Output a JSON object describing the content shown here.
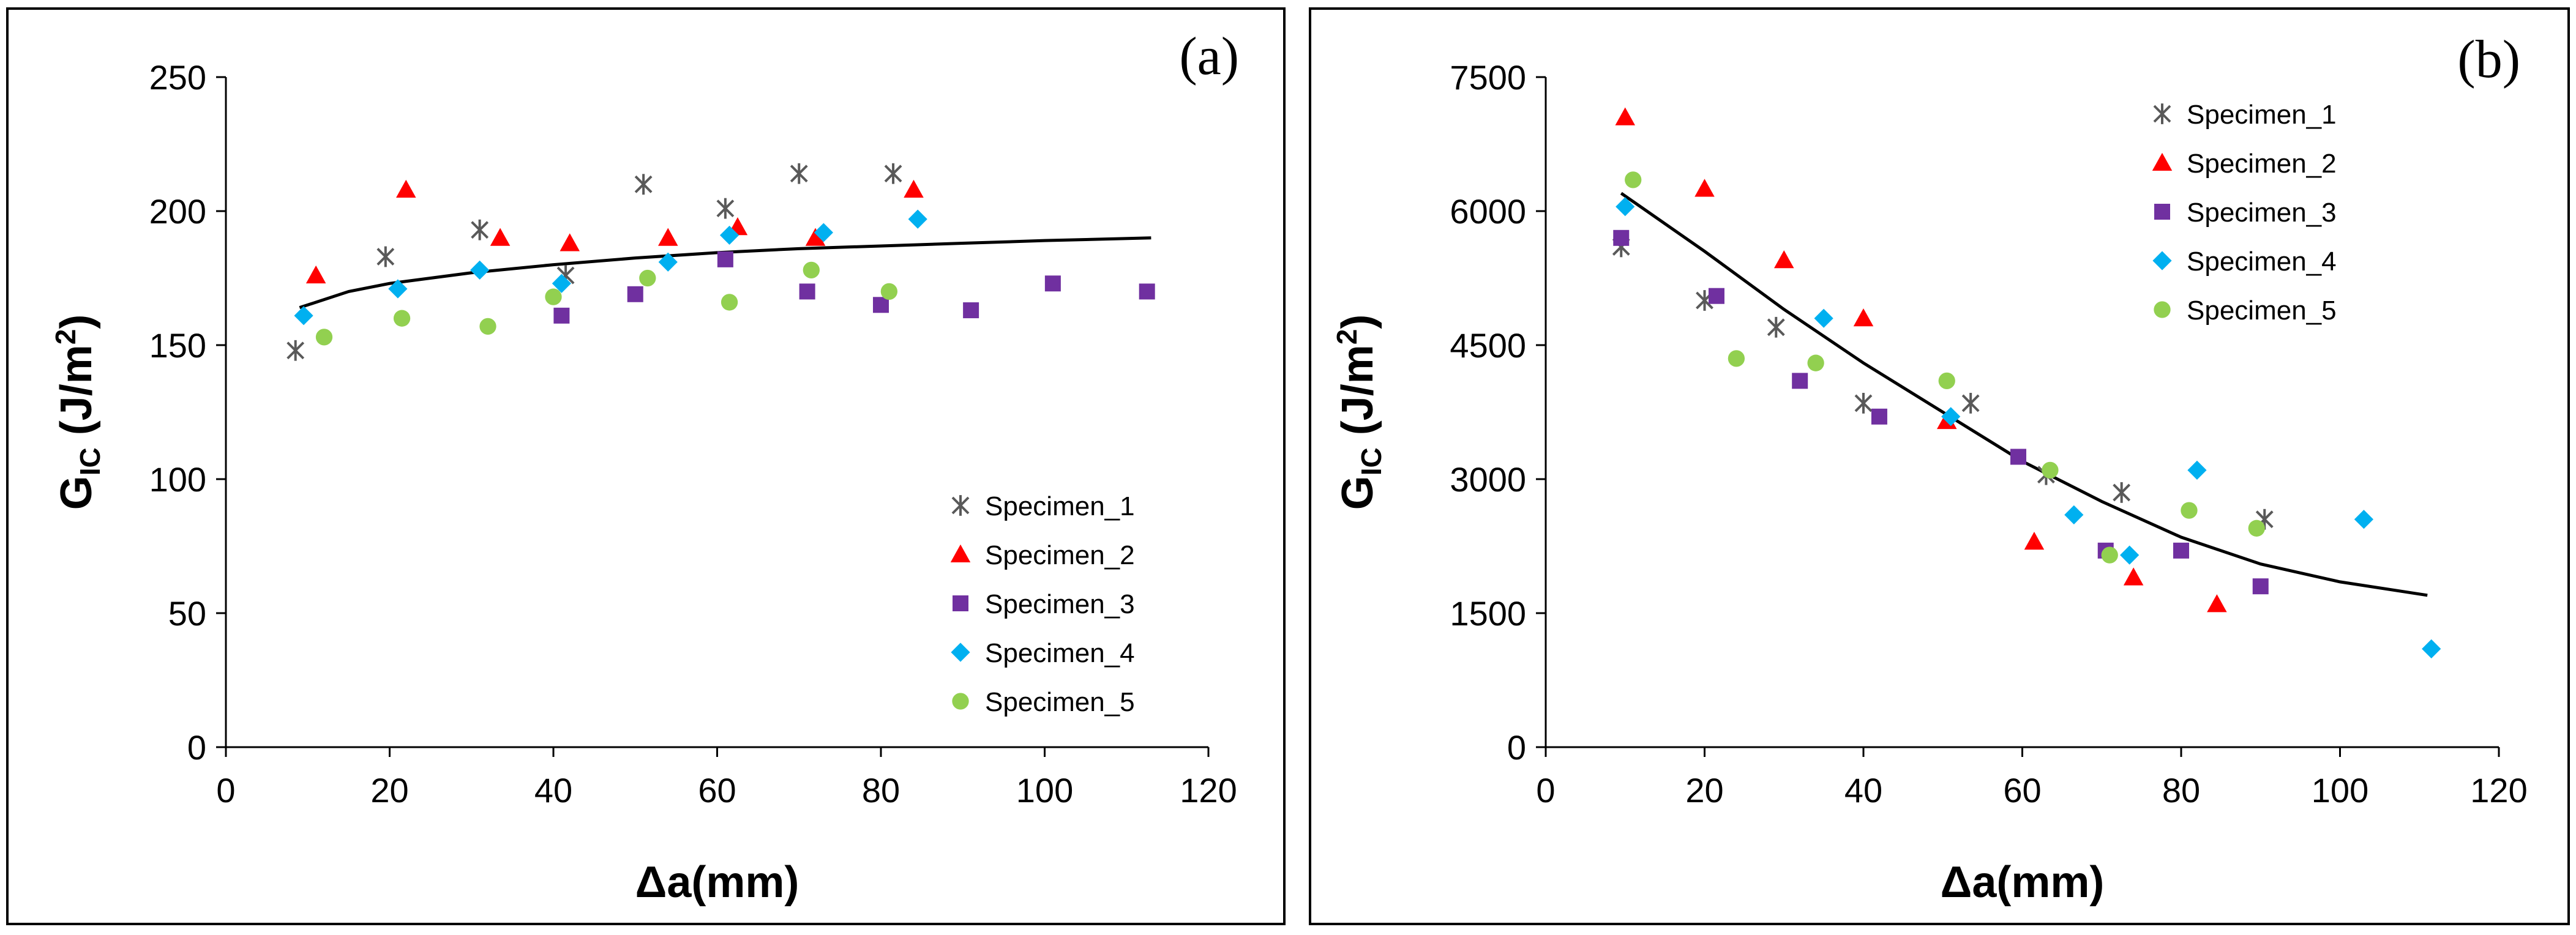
{
  "chart_data": [
    {
      "type": "scatter",
      "panel_label": "(a)",
      "xlabel": "Δa(mm)",
      "ylabel_main": "G",
      "ylabel_sub": "IC",
      "ylabel_unit": " (J/m",
      "ylabel_sup": "2",
      "ylabel_close": ")",
      "xlim": [
        0,
        120
      ],
      "ylim": [
        0,
        250
      ],
      "xticks": [
        0,
        20,
        40,
        60,
        80,
        100,
        120
      ],
      "yticks": [
        0,
        50,
        100,
        150,
        200,
        250
      ],
      "legend_position": "bottom-right",
      "series": [
        {
          "name": "Specimen_1",
          "marker": "star",
          "color": "#595959",
          "x": [
            8.5,
            19.5,
            31,
            41.5,
            51,
            61,
            70,
            81.5
          ],
          "y": [
            148,
            183,
            193,
            176,
            210,
            201,
            214,
            214
          ]
        },
        {
          "name": "Specimen_2",
          "marker": "triangle",
          "color": "#ff0000",
          "x": [
            11,
            22,
            33.5,
            42,
            54,
            62.5,
            72,
            84
          ],
          "y": [
            176,
            208,
            190,
            188,
            190,
            194,
            190,
            208
          ]
        },
        {
          "name": "Specimen_3",
          "marker": "square",
          "color": "#7030a0",
          "x": [
            41,
            50,
            61,
            71,
            80,
            91,
            101,
            112.5
          ],
          "y": [
            161,
            169,
            182,
            170,
            165,
            163,
            173,
            170
          ]
        },
        {
          "name": "Specimen_4",
          "marker": "diamond",
          "color": "#00b0f0",
          "x": [
            9.5,
            21,
            31,
            41,
            54,
            61.5,
            73,
            84.5
          ],
          "y": [
            161,
            171,
            178,
            173,
            181,
            191,
            192,
            197
          ]
        },
        {
          "name": "Specimen_5",
          "marker": "circle",
          "color": "#92d050",
          "x": [
            12,
            21.5,
            32,
            40,
            51.5,
            61.5,
            71.5,
            81
          ],
          "y": [
            153,
            160,
            157,
            168,
            175,
            166,
            178,
            170
          ]
        }
      ],
      "trendline": {
        "x": [
          9,
          15,
          20,
          30,
          40,
          50,
          60,
          70,
          80,
          90,
          100,
          113
        ],
        "y": [
          164,
          170,
          173,
          177,
          180,
          182.5,
          184.5,
          186,
          187,
          188,
          189,
          190
        ]
      }
    },
    {
      "type": "scatter",
      "panel_label": "(b)",
      "xlabel": "Δa(mm)",
      "ylabel_main": "G",
      "ylabel_sub": "IC",
      "ylabel_unit": " (J/m",
      "ylabel_sup": "2",
      "ylabel_close": ")",
      "xlim": [
        0,
        120
      ],
      "ylim": [
        0,
        7500
      ],
      "xticks": [
        0,
        20,
        40,
        60,
        80,
        100,
        120
      ],
      "yticks": [
        0,
        1500,
        3000,
        4500,
        6000,
        7500
      ],
      "legend_position": "top-right",
      "series": [
        {
          "name": "Specimen_1",
          "marker": "star",
          "color": "#595959",
          "x": [
            9.5,
            20,
            29,
            40,
            53.5,
            63,
            72.5,
            90.5
          ],
          "y": [
            5600,
            5000,
            4700,
            3850,
            3850,
            3050,
            2850,
            2550
          ]
        },
        {
          "name": "Specimen_2",
          "marker": "triangle",
          "color": "#ff0000",
          "x": [
            10,
            20,
            30,
            40,
            50.5,
            61.5,
            74,
            84.5
          ],
          "y": [
            7050,
            6250,
            5450,
            4800,
            3650,
            2300,
            1900,
            1600
          ]
        },
        {
          "name": "Specimen_3",
          "marker": "square",
          "color": "#7030a0",
          "x": [
            9.5,
            21.5,
            32,
            42,
            59.5,
            70.5,
            80,
            90
          ],
          "y": [
            5700,
            5050,
            4100,
            3700,
            3250,
            2200,
            2200,
            1800
          ]
        },
        {
          "name": "Specimen_4",
          "marker": "diamond",
          "color": "#00b0f0",
          "x": [
            10,
            35,
            51,
            66.5,
            73.5,
            82,
            103,
            111.5
          ],
          "y": [
            6050,
            4800,
            3700,
            2600,
            2150,
            3100,
            2550,
            1100
          ]
        },
        {
          "name": "Specimen_5",
          "marker": "circle",
          "color": "#92d050",
          "x": [
            11,
            24,
            34,
            50.5,
            63.5,
            71,
            81,
            89.5
          ],
          "y": [
            6350,
            4350,
            4300,
            4100,
            3100,
            2150,
            2650,
            2450
          ]
        }
      ],
      "trendline": {
        "x": [
          9.5,
          20,
          30,
          40,
          50,
          60,
          70,
          80,
          90,
          100,
          111
        ],
        "y": [
          6200,
          5550,
          4900,
          4300,
          3750,
          3200,
          2750,
          2350,
          2050,
          1850,
          1700
        ]
      }
    }
  ]
}
